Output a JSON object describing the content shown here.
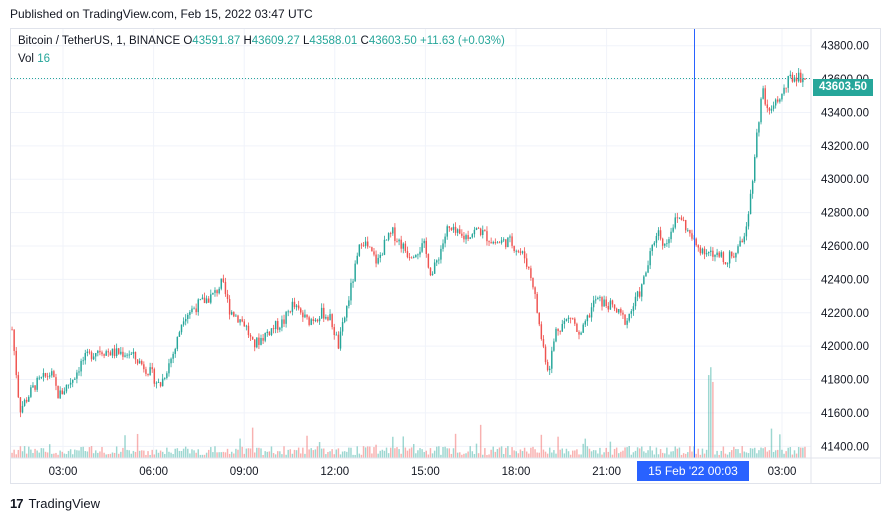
{
  "header": {
    "published": "Published on TradingView.com, Feb 15, 2022 03:47 UTC"
  },
  "legend": {
    "symbol": "Bitcoin / TetherUS, 1, BINANCE",
    "o_label": "O",
    "o_value": "43591.87",
    "h_label": "H",
    "h_value": "43609.27",
    "l_label": "L",
    "l_value": "43588.01",
    "c_label": "C",
    "c_value": "43603.50",
    "change": "+11.63 (+0.03%)",
    "vol_label": "Vol",
    "vol_value": "16"
  },
  "price_tag": "43603.50",
  "time_tag": "15 Feb '22   00:03",
  "footer": {
    "logo": "17",
    "brand": "TradingView"
  },
  "colors": {
    "up": "#26a69a",
    "down": "#ef5350",
    "crosshair": "#2962ff",
    "grid": "#f0f3fa"
  },
  "chart_data": {
    "type": "candlestick",
    "x_tick_labels": [
      "03:00",
      "06:00",
      "09:00",
      "12:00",
      "15:00",
      "18:00",
      "21:00",
      "03:00"
    ],
    "y_tick_labels": [
      "43800.00",
      "43600.00",
      "43400.00",
      "43200.00",
      "43000.00",
      "42800.00",
      "42600.00",
      "42400.00",
      "42200.00",
      "42000.00",
      "41800.00",
      "41600.00",
      "41400.00"
    ],
    "ylim": [
      41330,
      43900
    ],
    "last_price": 43603.5,
    "crosshair_time": "15 Feb '22 00:03",
    "grid": true,
    "close_path": [
      [
        0,
        42100
      ],
      [
        1,
        41620
      ],
      [
        3,
        41770
      ],
      [
        5,
        41840
      ],
      [
        6,
        41700
      ],
      [
        8,
        41820
      ],
      [
        9,
        41910
      ],
      [
        11,
        41980
      ],
      [
        13,
        41960
      ],
      [
        15,
        41960
      ],
      [
        17,
        41880
      ],
      [
        18,
        41830
      ],
      [
        19,
        41760
      ],
      [
        21,
        41990
      ],
      [
        22,
        42180
      ],
      [
        24,
        42250
      ],
      [
        26,
        42310
      ],
      [
        27,
        42380
      ],
      [
        28,
        42220
      ],
      [
        30,
        42130
      ],
      [
        31,
        42000
      ],
      [
        33,
        42090
      ],
      [
        35,
        42150
      ],
      [
        36,
        42250
      ],
      [
        38,
        42150
      ],
      [
        40,
        42200
      ],
      [
        41,
        42160
      ],
      [
        42,
        42000
      ],
      [
        43,
        42220
      ],
      [
        45,
        42650
      ],
      [
        46,
        42570
      ],
      [
        47,
        42500
      ],
      [
        48,
        42620
      ],
      [
        49,
        42680
      ],
      [
        51,
        42550
      ],
      [
        53,
        42600
      ],
      [
        54,
        42420
      ],
      [
        56,
        42700
      ],
      [
        58,
        42650
      ],
      [
        60,
        42700
      ],
      [
        62,
        42620
      ],
      [
        64,
        42630
      ],
      [
        66,
        42530
      ],
      [
        67,
        42380
      ],
      [
        68,
        42070
      ],
      [
        69,
        41850
      ],
      [
        70,
        42100
      ],
      [
        72,
        42180
      ],
      [
        73,
        42040
      ],
      [
        75,
        42280
      ],
      [
        77,
        42240
      ],
      [
        79,
        42150
      ],
      [
        81,
        42350
      ],
      [
        83,
        42700
      ],
      [
        84,
        42600
      ],
      [
        85,
        42730
      ],
      [
        86,
        42780
      ],
      [
        87,
        42680
      ],
      [
        88,
        42600
      ],
      [
        89,
        42580
      ],
      [
        90,
        42550
      ],
      [
        92,
        42520
      ],
      [
        93,
        42560
      ],
      [
        94,
        42620
      ],
      [
        95,
        42900
      ],
      [
        96,
        43350
      ],
      [
        96.6,
        43550
      ],
      [
        97,
        43450
      ],
      [
        98,
        43430
      ],
      [
        99,
        43500
      ],
      [
        100,
        43600
      ],
      [
        101,
        43620
      ],
      [
        102,
        43603.5
      ]
    ]
  }
}
